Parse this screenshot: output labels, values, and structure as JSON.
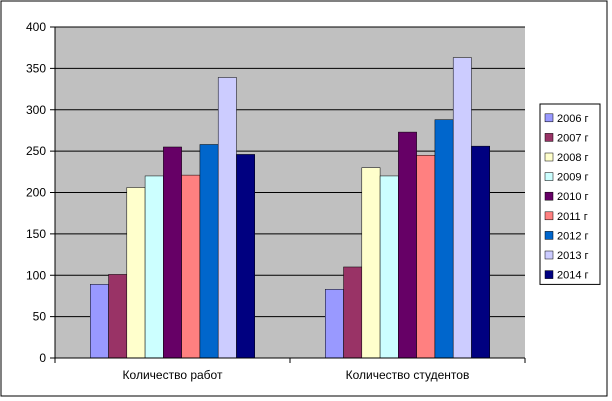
{
  "chart_data": {
    "type": "bar",
    "title": "",
    "xlabel": "",
    "ylabel": "",
    "categories": [
      "Количество работ",
      "Количество студентов"
    ],
    "ylim": [
      0,
      400
    ],
    "yticks": [
      0,
      50,
      100,
      150,
      200,
      250,
      300,
      350,
      400
    ],
    "grid": true,
    "legend_position": "right",
    "series": [
      {
        "name": "2006 г",
        "color": "#9999ff",
        "values": [
          89,
          83
        ]
      },
      {
        "name": "2007 г",
        "color": "#993366",
        "values": [
          101,
          110
        ]
      },
      {
        "name": "2008 г",
        "color": "#ffffcc",
        "values": [
          206,
          230
        ]
      },
      {
        "name": "2009 г",
        "color": "#ccffff",
        "values": [
          220,
          220
        ]
      },
      {
        "name": "2010 г",
        "color": "#660066",
        "values": [
          255,
          273
        ]
      },
      {
        "name": "2011 г",
        "color": "#ff8080",
        "values": [
          221,
          245
        ]
      },
      {
        "name": "2012 г",
        "color": "#0066cc",
        "values": [
          258,
          288
        ]
      },
      {
        "name": "2013 г",
        "color": "#ccccff",
        "values": [
          339,
          363
        ]
      },
      {
        "name": "2014 г",
        "color": "#000080",
        "values": [
          246,
          256
        ]
      }
    ],
    "plot_background": "#c0c0c0",
    "chart_background": "#ffffff"
  }
}
